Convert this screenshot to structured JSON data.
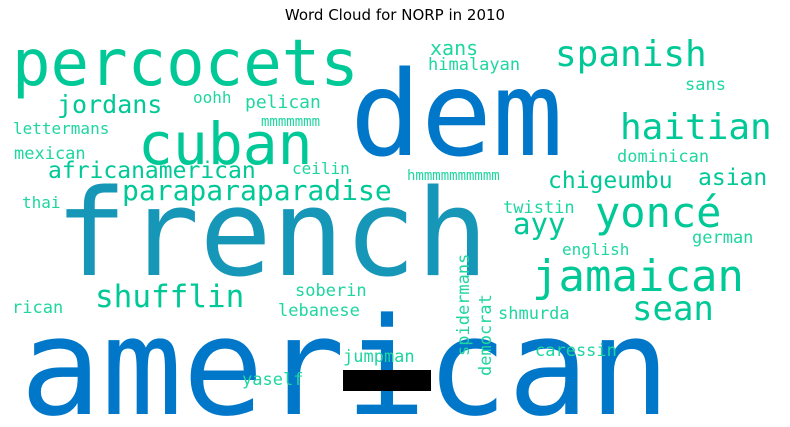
{
  "title": "Word Cloud for NORP in 2010",
  "colors": {
    "blue": "#0077c8",
    "teal": "#1797b8",
    "green": "#00c896",
    "lightgreen": "#1fd6a0"
  },
  "words": {
    "american": "american",
    "french": "french",
    "dem": "dem",
    "percocets": "percocets",
    "cuban": "cuban",
    "spanish": "spanish",
    "haitian": "haitian",
    "yonce": "yoncé",
    "jamaican": "jamaican",
    "sean": "sean",
    "shufflin": "shufflin",
    "paraparaparadise": "paraparaparadise",
    "africanamerican": "africanamerican",
    "jordans": "jordans",
    "chigeumbu": "chigeumbu",
    "asian": "asian",
    "ayy": "ayy",
    "xans": "xans",
    "himalayan": "himalayan",
    "sans": "sans",
    "oohh": "oohh",
    "pelican": "pelican",
    "mmmmmmm": "mmmmmmm",
    "lettermans": "lettermans",
    "mexican": "mexican",
    "ceilin": "ceilin",
    "hmmmmmmmmmm": "hmmmmmmmmmm",
    "dominican": "dominican",
    "thai": "thai",
    "twistin": "twistin",
    "english": "english",
    "german": "german",
    "soberin": "soberin",
    "lebanese": "lebanese",
    "rican": "rican",
    "shmurda": "shmurda",
    "caressin": "caressin",
    "jumpman": "jumpman",
    "yaself": "yaself",
    "spidermans": "spidermans",
    "democrat": "democrat"
  }
}
